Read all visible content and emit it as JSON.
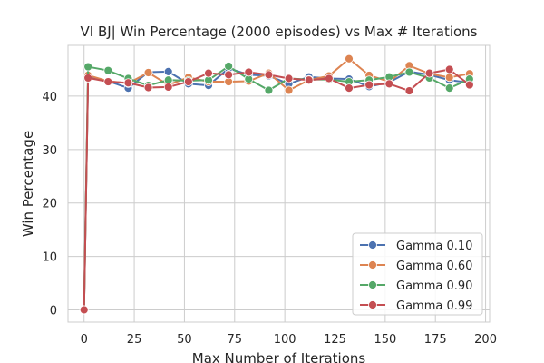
{
  "chart_data": {
    "type": "line",
    "title": "VI BJ| Win Percentage (2000 episodes) vs Max # Iterations",
    "xlabel": "Max Number of Iterations",
    "ylabel": "Win Percentage",
    "xlim": [
      -8,
      202
    ],
    "ylim": [
      -2.3,
      49.5
    ],
    "xticks": [
      0,
      25,
      50,
      75,
      100,
      125,
      150,
      175,
      200
    ],
    "yticks": [
      0,
      10,
      20,
      30,
      40
    ],
    "xtick_labels": [
      "0",
      "25",
      "50",
      "75",
      "100",
      "125",
      "150",
      "175",
      "200"
    ],
    "ytick_labels": [
      "0",
      "10",
      "20",
      "30",
      "40"
    ],
    "grid": true,
    "legend_position": "lower right",
    "x": [
      0,
      2,
      12,
      22,
      32,
      42,
      52,
      62,
      72,
      82,
      92,
      102,
      112,
      122,
      132,
      142,
      152,
      162,
      172,
      182,
      192
    ],
    "series": [
      {
        "name": "Gamma 0.10",
        "color": "#4c72b0",
        "values": [
          0,
          43.5,
          42.8,
          41.5,
          44.5,
          44.6,
          42.3,
          42.0,
          45.2,
          44.0,
          43.8,
          42.3,
          43.6,
          43.3,
          43.2,
          41.8,
          42.6,
          44.6,
          44.0,
          43.0,
          42.5
        ]
      },
      {
        "name": "Gamma 0.60",
        "color": "#dd8452",
        "values": [
          0,
          43.9,
          42.8,
          42.4,
          44.4,
          42.1,
          43.5,
          42.7,
          42.7,
          42.8,
          44.3,
          41.1,
          43.0,
          43.8,
          47.0,
          43.9,
          42.7,
          45.7,
          44.2,
          43.5,
          44.2
        ]
      },
      {
        "name": "Gamma 0.90",
        "color": "#55a868",
        "values": [
          0,
          45.5,
          44.8,
          43.3,
          42.0,
          43.0,
          42.9,
          43.0,
          45.6,
          43.2,
          41.1,
          43.3,
          43.1,
          43.1,
          42.7,
          43.0,
          43.6,
          44.5,
          43.4,
          41.5,
          43.2
        ]
      },
      {
        "name": "Gamma 0.99",
        "color": "#c44e52",
        "values": [
          0,
          43.4,
          42.7,
          42.5,
          41.6,
          41.7,
          42.7,
          44.3,
          44.0,
          44.5,
          44.0,
          43.3,
          43.0,
          43.3,
          41.5,
          42.1,
          42.3,
          41.0,
          44.3,
          45.0,
          42.1
        ]
      }
    ]
  }
}
